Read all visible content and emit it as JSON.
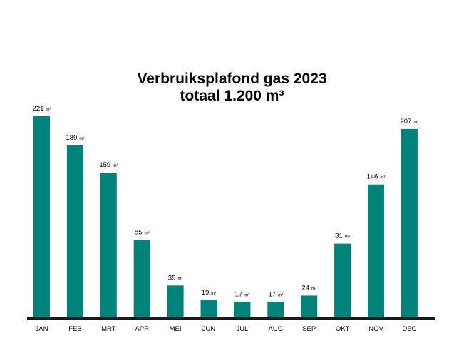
{
  "title": "Verbruiksplafond gas 2023",
  "subtitle": "totaal 1.200 m³",
  "chart_data": {
    "type": "bar",
    "title": "Verbruiksplafond gas 2023",
    "subtitle": "totaal 1.200 m³",
    "xlabel": "",
    "ylabel": "",
    "unit": "m³",
    "categories": [
      "JAN",
      "FEB",
      "MRT",
      "APR",
      "MEI",
      "JUN",
      "JUL",
      "AUG",
      "SEP",
      "OKT",
      "NOV",
      "DEC"
    ],
    "values": [
      221,
      189,
      159,
      85,
      35,
      19,
      17,
      17,
      24,
      81,
      146,
      207
    ],
    "ylim": [
      0,
      221
    ],
    "grid": false,
    "legend": "none",
    "data_labels": true,
    "colors": {
      "bar": "#00837a",
      "baseline": "#1a1a1a",
      "text": "#000000"
    }
  }
}
